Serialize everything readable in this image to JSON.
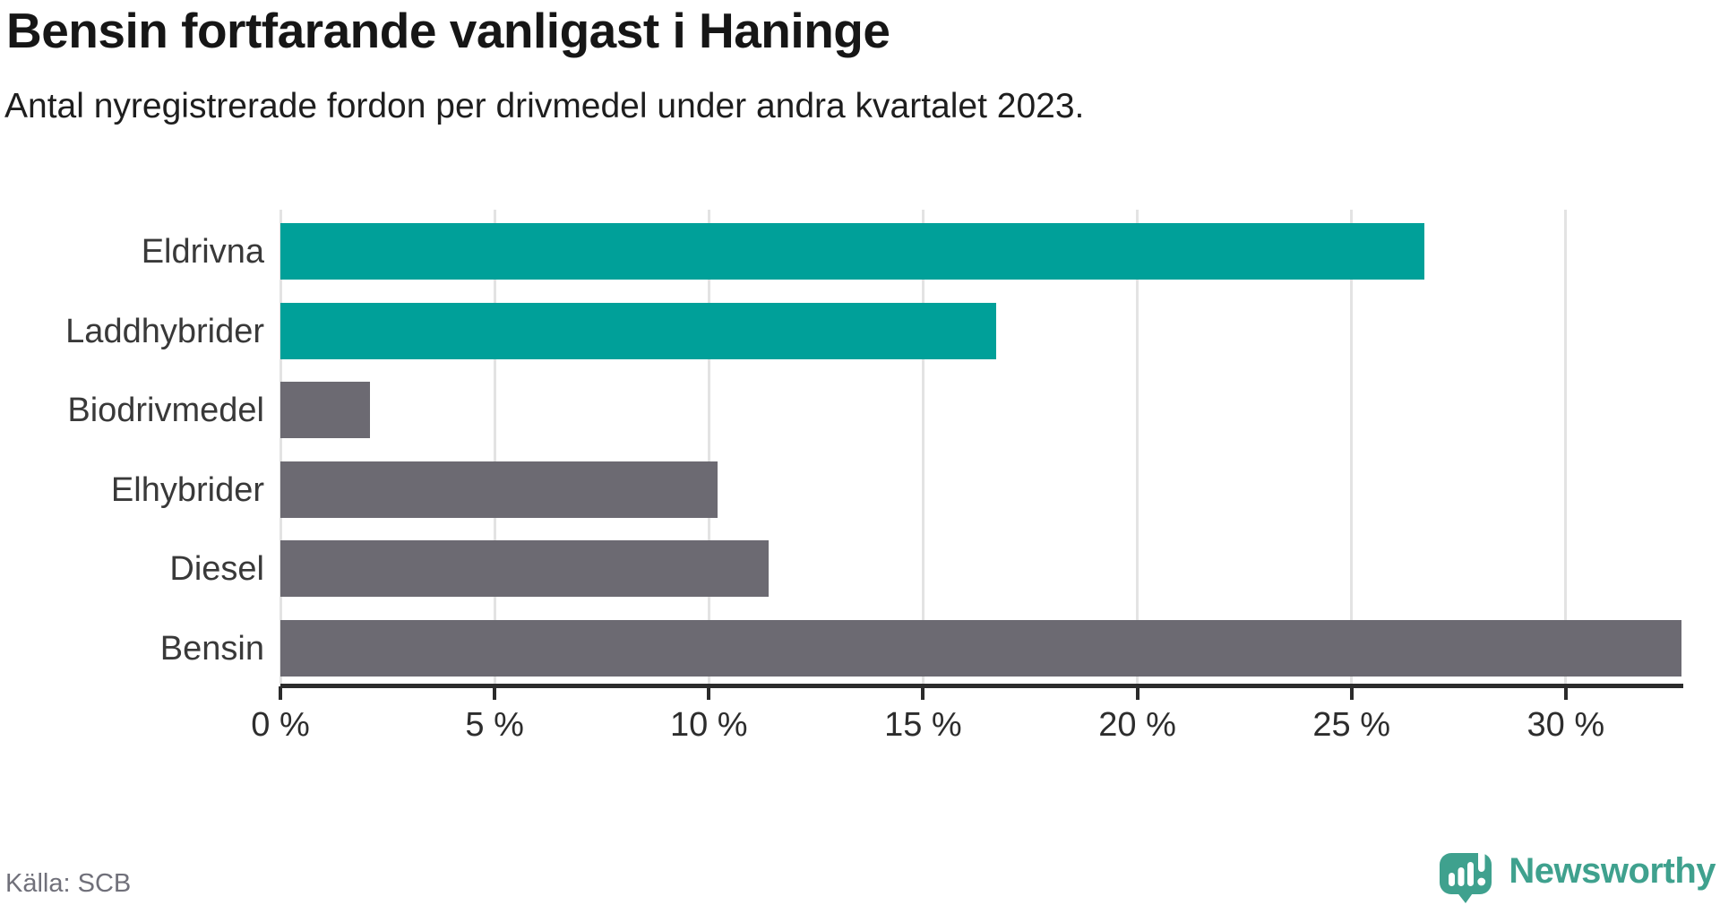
{
  "header": {
    "title": "Bensin fortfarande vanligast i Haninge",
    "subtitle": "Antal nyregistrerade fordon per drivmedel under andra kvartalet 2023."
  },
  "chart_data": {
    "type": "bar",
    "orientation": "horizontal",
    "title": "Bensin fortfarande vanligast i Haninge",
    "subtitle": "Antal nyregistrerade fordon per drivmedel under andra kvartalet 2023.",
    "categories": [
      "Eldrivna",
      "Laddhybrider",
      "Biodrivmedel",
      "Elhybrider",
      "Diesel",
      "Bensin"
    ],
    "values": [
      26.7,
      16.7,
      2.1,
      10.2,
      11.4,
      32.7
    ],
    "unit": "%",
    "bar_colors": [
      "#00a099",
      "#00a099",
      "#6c6a72",
      "#6c6a72",
      "#6c6a72",
      "#6c6a72"
    ],
    "highlight_color": "#00a099",
    "default_color": "#6c6a72",
    "xlim": [
      0,
      32.7
    ],
    "x_ticks": [
      0,
      5,
      10,
      15,
      20,
      25,
      30
    ],
    "x_tick_labels": [
      "0 %",
      "5 %",
      "10 %",
      "15 %",
      "20 %",
      "25 %",
      "30 %"
    ],
    "grid": "vertical",
    "gridline_color": "#e3e3e3",
    "axis_color": "#2b2b2b",
    "legend": "none"
  },
  "footer": {
    "source": "Källa: SCB",
    "brand": "Newsworthy",
    "brand_color": "#3fa18e"
  }
}
